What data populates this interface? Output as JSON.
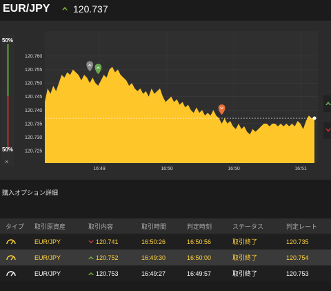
{
  "header": {
    "pair": "EUR/JPY",
    "direction_icon": "up-arrow-icon",
    "price": "120.737"
  },
  "meter": {
    "top_pct": "50%",
    "bottom_pct": "50%",
    "close": "×",
    "colors": {
      "call": "#5fa83a",
      "put": "#b5332b"
    }
  },
  "chart_data": {
    "type": "area",
    "yticks": [
      "120.760",
      "120.755",
      "120.750",
      "120.745",
      "120.740",
      "120.735",
      "120.730",
      "120.725"
    ],
    "xticks": [
      "16:49",
      "16:50",
      "16:50",
      "16:51"
    ],
    "fill_color": "#ffc629",
    "current_price": 120.737,
    "x": [
      0,
      1,
      2,
      3,
      4,
      5,
      6,
      7,
      8,
      9,
      10,
      11,
      12,
      13,
      14,
      15,
      16,
      17,
      18,
      19,
      20,
      21,
      22,
      23,
      24,
      25,
      26,
      27,
      28,
      29,
      30,
      31,
      32,
      33,
      34,
      35,
      36,
      37,
      38,
      39,
      40,
      41,
      42,
      43,
      44,
      45,
      46,
      47,
      48,
      49,
      50,
      51,
      52,
      53,
      54,
      55,
      56,
      57,
      58,
      59,
      60,
      61,
      62,
      63,
      64,
      65,
      66,
      67,
      68,
      69,
      70,
      71,
      72,
      73,
      74,
      75,
      76,
      77,
      78,
      79,
      80,
      81,
      82,
      83,
      84,
      85,
      86,
      87,
      88,
      89,
      90,
      91,
      92,
      93,
      94,
      95,
      96
    ],
    "y": [
      120.743,
      120.748,
      120.746,
      120.749,
      120.747,
      120.75,
      120.753,
      120.752,
      120.754,
      120.753,
      120.755,
      120.754,
      120.753,
      120.751,
      120.753,
      120.752,
      120.75,
      120.752,
      120.75,
      120.749,
      120.751,
      120.753,
      120.752,
      120.755,
      120.756,
      120.754,
      120.755,
      120.753,
      120.752,
      120.751,
      120.749,
      120.75,
      120.748,
      120.747,
      120.748,
      120.746,
      120.747,
      120.745,
      120.748,
      120.746,
      120.747,
      120.748,
      120.745,
      120.743,
      120.744,
      120.745,
      120.743,
      120.744,
      120.742,
      120.743,
      120.741,
      120.742,
      120.74,
      120.739,
      120.741,
      120.739,
      120.74,
      120.738,
      120.739,
      120.738,
      120.74,
      120.738,
      120.737,
      120.735,
      120.737,
      120.735,
      120.736,
      120.734,
      120.733,
      120.735,
      120.733,
      120.734,
      120.732,
      120.731,
      120.733,
      120.732,
      120.733,
      120.734,
      120.735,
      120.735,
      120.734,
      120.735,
      120.735,
      120.734,
      120.735,
      120.734,
      120.735,
      120.734,
      120.735,
      120.734,
      120.736,
      120.735,
      120.733,
      120.736,
      120.738,
      120.737,
      120.737
    ],
    "markers": [
      {
        "name": "up-marker-gray",
        "x": 16,
        "y": 120.754,
        "color": "#8a8a8a",
        "dir": "up"
      },
      {
        "name": "up-marker-green",
        "x": 19,
        "y": 120.753,
        "color": "#6aa84f",
        "dir": "up"
      },
      {
        "name": "down-marker-orange",
        "x": 63,
        "y": 120.738,
        "color": "#e8703a",
        "dir": "down"
      }
    ]
  },
  "side_tabs": [
    {
      "name": "side-tab-up",
      "icon": "up-arrow-icon",
      "color": "#6aa84f"
    },
    {
      "name": "side-tab-down",
      "icon": "down-arrow-icon",
      "color": "#c9302c"
    }
  ],
  "details": {
    "title": "購入オプション詳細"
  },
  "table": {
    "headers": [
      "タイプ",
      "取引原資産",
      "取引内容",
      "取引時間",
      "判定時刻",
      "ステータス",
      "判定レート"
    ],
    "rows": [
      {
        "type_icon": "gauge-icon",
        "type_color": "#ffd23a",
        "asset": "EUR/JPY",
        "dir": "down",
        "dir_icon": "down-arrow-icon",
        "value": "120.741",
        "time": "16:50:26",
        "judge": "16:50:56",
        "status": "取引終了",
        "rate": "120.735"
      },
      {
        "type_icon": "gauge-icon",
        "type_color": "#ffd23a",
        "asset": "EUR/JPY",
        "dir": "up",
        "dir_icon": "up-arrow-icon",
        "value": "120.752",
        "time": "16:49:30",
        "judge": "16:50:00",
        "status": "取引終了",
        "rate": "120.754"
      },
      {
        "type_icon": "gauge-icon",
        "type_color": "#ffffff",
        "asset": "EUR/JPY",
        "dir": "up",
        "dir_icon": "up-arrow-icon",
        "value": "120.753",
        "time": "16:49:27",
        "judge": "16:49:57",
        "status": "取引終了",
        "rate": "120.753"
      }
    ]
  }
}
